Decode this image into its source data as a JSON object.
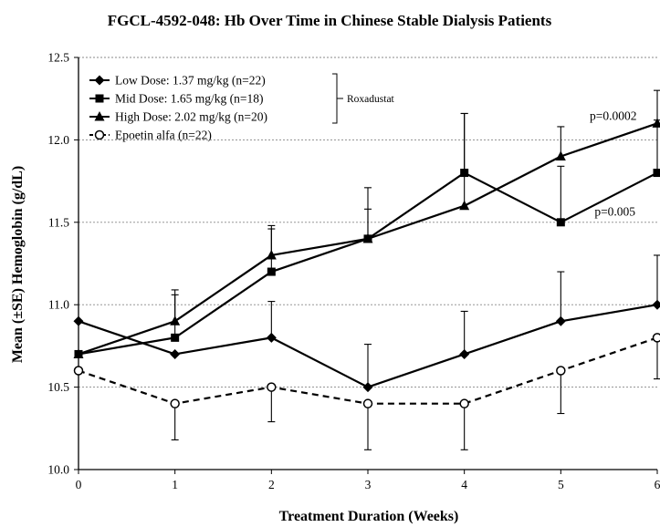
{
  "chart_data": {
    "type": "line",
    "title": "FGCL-4592-048: Hb Over Time in Chinese Stable Dialysis Patients",
    "xlabel": "Treatment Duration (Weeks)",
    "ylabel": "Mean (±SE) Hemoglobin (g/dL)",
    "x": [
      0,
      1,
      2,
      3,
      4,
      5,
      6
    ],
    "xticks": [
      "0",
      "1",
      "2",
      "3",
      "4",
      "5",
      "6"
    ],
    "yticks": [
      "10.0",
      "10.5",
      "11.0",
      "11.5",
      "12.0",
      "12.5"
    ],
    "xlim": [
      0,
      6
    ],
    "ylim": [
      10.0,
      12.5
    ],
    "grid": "horizontal dashed",
    "legend_position": "top-left",
    "legend_group_label": "Roxadustat",
    "series": [
      {
        "name": "Low Dose: 1.37 mg/kg (n=22)",
        "marker": "diamond",
        "line": "solid",
        "values": [
          10.9,
          10.7,
          10.8,
          10.5,
          10.7,
          10.9,
          11.0
        ],
        "err_upper": [
          null,
          null,
          11.02,
          10.76,
          10.96,
          11.2,
          11.3
        ]
      },
      {
        "name": "Mid Dose: 1.65 mg/kg (n=18)",
        "marker": "square",
        "line": "solid",
        "values": [
          10.7,
          10.8,
          11.2,
          11.4,
          11.8,
          11.5,
          11.8
        ],
        "err_upper": [
          null,
          11.06,
          11.46,
          11.58,
          12.16,
          11.84,
          12.12
        ]
      },
      {
        "name": "High Dose: 2.02 mg/kg (n=20)",
        "marker": "triangle",
        "line": "solid",
        "values": [
          10.7,
          10.9,
          11.3,
          11.4,
          11.6,
          11.9,
          12.1
        ],
        "err_upper": [
          null,
          11.09,
          11.48,
          11.71,
          12.16,
          12.08,
          12.3
        ]
      },
      {
        "name": "Epoetin alfa (n=22)",
        "marker": "open-circle",
        "line": "dashed",
        "values": [
          10.6,
          10.4,
          10.5,
          10.4,
          10.4,
          10.6,
          10.8
        ],
        "err_lower": [
          null,
          10.18,
          10.29,
          10.12,
          10.12,
          10.34,
          10.55
        ]
      }
    ],
    "annotations": [
      {
        "text": "p=0.0002",
        "x": 5.3,
        "y": 12.12
      },
      {
        "text": "p=0.005",
        "x": 5.35,
        "y": 11.54
      }
    ],
    "colors": {
      "line": "#000000",
      "grid": "#888888",
      "background": "#ffffff"
    }
  }
}
